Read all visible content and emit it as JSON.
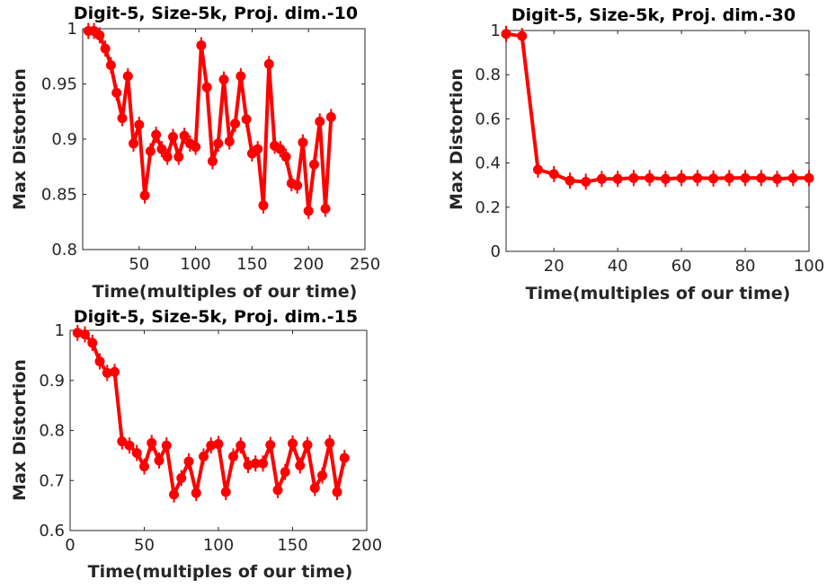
{
  "colors": {
    "series": "#ff0000",
    "axis": "#262626",
    "background": "#ffffff"
  },
  "chart_data": [
    {
      "type": "line",
      "title": "Digit-5, Size-5k, Proj. dim.-10",
      "xlabel": "Time(multiples of our time)",
      "ylabel": "Max Distortion",
      "xlim": [
        0,
        250
      ],
      "ylim": [
        0.8,
        1
      ],
      "xticks": [
        50,
        100,
        150,
        200,
        250
      ],
      "xtick_labels": [
        "50",
        "100",
        "150",
        "200",
        "250"
      ],
      "yticks": [
        0.8,
        0.85,
        0.9,
        0.95,
        1
      ],
      "ytick_labels": [
        "0.8",
        "0.85",
        "0.9",
        "0.95",
        "1"
      ],
      "grid": false,
      "x": [
        5,
        10,
        15,
        20,
        25,
        30,
        35,
        40,
        45,
        50,
        55,
        60,
        65,
        70,
        75,
        80,
        85,
        90,
        95,
        100,
        105,
        110,
        115,
        120,
        125,
        130,
        135,
        140,
        145,
        150,
        155,
        160,
        165,
        170,
        175,
        180,
        185,
        190,
        195,
        200,
        205,
        210,
        215,
        220
      ],
      "y": [
        0.998,
        0.998,
        0.994,
        0.982,
        0.967,
        0.942,
        0.919,
        0.957,
        0.896,
        0.913,
        0.849,
        0.889,
        0.904,
        0.891,
        0.884,
        0.902,
        0.884,
        0.903,
        0.896,
        0.893,
        0.985,
        0.947,
        0.88,
        0.896,
        0.954,
        0.898,
        0.914,
        0.957,
        0.918,
        0.887,
        0.891,
        0.84,
        0.968,
        0.894,
        0.891,
        0.884,
        0.86,
        0.858,
        0.897,
        0.835,
        0.877,
        0.916,
        0.837,
        0.92
      ]
    },
    {
      "type": "line",
      "title": "Digit-5, Size-5k, Proj. dim.-30",
      "xlabel": "Time(multiples of our time)",
      "ylabel": "Max Distortion",
      "xlim": [
        5,
        100
      ],
      "ylim": [
        0,
        1
      ],
      "xticks": [
        20,
        40,
        60,
        80,
        100
      ],
      "xtick_labels": [
        "20",
        "40",
        "60",
        "80",
        "100"
      ],
      "yticks": [
        0,
        0.2,
        0.4,
        0.6,
        0.8,
        1
      ],
      "ytick_labels": [
        "0",
        "0.2",
        "0.4",
        "0.6",
        "0.8",
        "1"
      ],
      "grid": false,
      "x": [
        5,
        10,
        15,
        20,
        25,
        30,
        35,
        40,
        45,
        50,
        55,
        60,
        65,
        70,
        75,
        80,
        85,
        90,
        95,
        100
      ],
      "y": [
        0.985,
        0.975,
        0.37,
        0.35,
        0.32,
        0.315,
        0.328,
        0.328,
        0.332,
        0.332,
        0.328,
        0.332,
        0.332,
        0.33,
        0.332,
        0.332,
        0.332,
        0.328,
        0.332,
        0.332
      ]
    },
    {
      "type": "line",
      "title": "Digit-5, Size-5k, Proj. dim.-15",
      "xlabel": "Time(multiples of our time)",
      "ylabel": "Max Distortion",
      "xlim": [
        0,
        200
      ],
      "ylim": [
        0.6,
        1
      ],
      "xticks": [
        0,
        50,
        100,
        150,
        200
      ],
      "xtick_labels": [
        "0",
        "50",
        "100",
        "150",
        "200"
      ],
      "yticks": [
        0.6,
        0.7,
        0.8,
        0.9,
        1
      ],
      "ytick_labels": [
        "0.6",
        "0.7",
        "0.8",
        "0.9",
        "1"
      ],
      "grid": false,
      "x": [
        5,
        10,
        15,
        20,
        25,
        30,
        35,
        40,
        45,
        50,
        55,
        60,
        65,
        70,
        75,
        80,
        85,
        90,
        95,
        100,
        105,
        110,
        115,
        120,
        125,
        130,
        135,
        140,
        145,
        150,
        155,
        160,
        165,
        170,
        175,
        180,
        185
      ],
      "y": [
        0.995,
        0.992,
        0.975,
        0.938,
        0.915,
        0.917,
        0.778,
        0.77,
        0.755,
        0.728,
        0.775,
        0.74,
        0.77,
        0.672,
        0.705,
        0.738,
        0.675,
        0.748,
        0.77,
        0.773,
        0.677,
        0.748,
        0.77,
        0.731,
        0.734,
        0.734,
        0.771,
        0.681,
        0.717,
        0.774,
        0.73,
        0.771,
        0.685,
        0.71,
        0.775,
        0.677,
        0.745
      ]
    }
  ]
}
